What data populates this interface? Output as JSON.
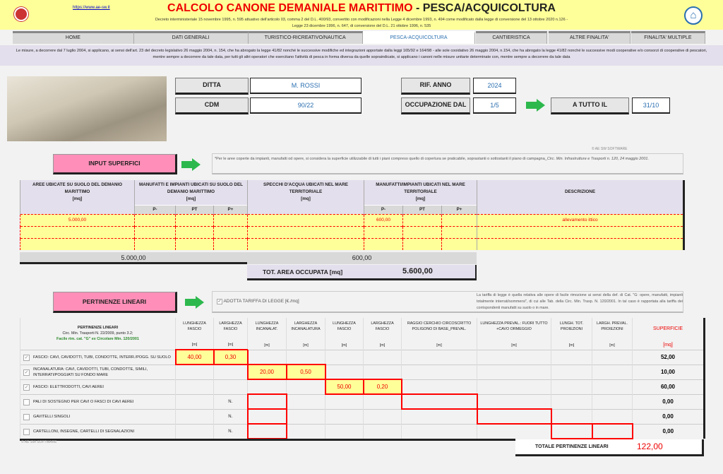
{
  "header": {
    "url": "https://www.ae-sw.it",
    "title_red": "CALCOLO CANONE DEMANIALE MARITTIMO",
    "title_sep": " - ",
    "title_black": "PESCA/ACQUICOLTURA",
    "subtitle1": "Decreto interministeriale 15 novembre 1995, n. 595 attuativo dell'articolo 03, comma 2 del D.L. 400/93, convertito con modificazioni nella Legge 4 dicembre 1993, n. 494 come modificato dalla legge di conversione del 13 ottobre 2020 n.126 -",
    "subtitle2": "Legge 23 dicembre 1996, n. 647, di conversione del D.L. 21 ottobre 1996, n. 535",
    "home_icon": "house-icon"
  },
  "tabs": [
    {
      "label": "HOME"
    },
    {
      "label": "DATI GENERALI"
    },
    {
      "label": "TURISTICO-RICREATIVO/NAUTICA"
    },
    {
      "label": "PESCA-ACQUICOLTURA",
      "active": true
    },
    {
      "label": "CANTIERISTICA"
    },
    {
      "label": "ALTRE FINALITA'"
    },
    {
      "label": "FINALITA' MULTIPLE"
    }
  ],
  "notice": "Le misure, a decorrere dal 7 luglio 2004, si applicano, ai sensi dell'art. 23 del decreto legislativo 26 maggio 2004, n. 154, che ha abrogato la legge 41/82 nonché le successive modifiche ed integrazioni apportate dalla leggi 165/92 e 164/98 - alle sole cooidativo 26 maggio 2004, n.154, che ha abrogato la legge 41/82 nonché le successive modi cooperative e/o consorzi di cooperative di pescatori, mentre sempre a decorrere da tale data, per tutti gli altri operatori che esercitano l'attività di pesca in forma diversa da quelle sopraindicate, si applicano i canoni nelle misure unitarie determinate con, mentre sempre a decorrere da tale data",
  "form": {
    "ditta_label": "DITTA",
    "ditta": "M. ROSSI",
    "cdm_label": "CDM",
    "cdm": "90/22",
    "rif_label": "RIF. ANNO",
    "rif": "2024",
    "occ_label": "OCCUPAZIONE DAL",
    "occ": "1/5",
    "tutto_label": "A TUTTO IL",
    "tutto": "31/10"
  },
  "copyright": "© AE SW SOFTWARE",
  "input": {
    "button": "INPUT SUPERFICI",
    "note_pre": "*Per le aree coperte da impianti, manufatti od opere, si considera la superficie utilizzabile di tutti i piani compreso quello di copertura se praticabile, soprastanti o sottostanti il piano di campagna_",
    "note_ref": "Circ. Min. Infrastrutture e Trasporti n. 120, 24 maggio 2001."
  },
  "superfici": {
    "headers": [
      "AREE UBICATE SU SUOLO DEL DEMANIO MARITTIMO",
      "MANUFATTI E IMPIANTI UBICATI SU SUOLO DEL DEMANIO MARITTIMO",
      "SPECCHI D'ACQUA UBICATI NEL MARE TERRITORIALE",
      "MANUFATTI/IMPIANTI UBICATI NEL MARE TERRITORIALE",
      "DESCRIZIONE"
    ],
    "unit": "[mq]",
    "sub": [
      "P-",
      "PT",
      "P+"
    ],
    "rows": [
      [
        "5.000,00",
        "",
        "",
        "",
        "",
        "600,00",
        "",
        "",
        "allevamento ittico"
      ],
      [
        "",
        "",
        "",
        "",
        "",
        "",
        "",
        "",
        ""
      ],
      [
        "",
        "",
        "",
        "",
        "",
        "",
        "",
        "",
        ""
      ]
    ],
    "total_suolo": "5.000,00",
    "total_mare": "600,00",
    "tot_label": "TOT. AREA OCCUPATA [mq]",
    "tot_value": "5.600,00"
  },
  "pertinenze": {
    "button": "PERTINENZE LINEARI",
    "checkbox_label": "ADOTTA TARIFFA DI LEGGE [€./mq]",
    "checkbox_checked": true,
    "note": "La tariffa di legge è quella relativa alle opere di facile rimozione ai sensi della def. di Cat. \"G: opere, manufatti, impianti totalmente interrati/sommersi\", di cui alle Tab. della Circ. Min. Trasp. N. 120/2001. In tal caso è rapportata alla tariffa dei corrispondenti manufatti su suolo o in mare.",
    "head_title": "PERTINENZE LINEARI",
    "head_ref1": "Circ. Min. Trasporti N. 22/2009, punto 3.2;",
    "head_ref2": "Facile rim. cat. \"G\" ex Circolare Min. 120/2001",
    "columns": [
      "LUNGHEZZA FASCIO",
      "LARGHEZZA FASCIO",
      "LUNGHEZZA INCANALAT.",
      "LARGHEZZA INCANALATURA",
      "LUNGHEZZA FASCIO",
      "LARGHEZZA FASCIO",
      "RAGGIO CERCHIO CIRCOSCRITTO POLIGONO DI BASE_PREVAL.",
      "LUNGHEZZA PREVAL.: FUORI TUTTO +CAVO ORMEGGIO",
      "LUNGH. TOT. PROIEZIONI",
      "LARGH. PREVAL. PROIEZIONI"
    ],
    "col_unit": "[m]",
    "sup_label": "SUPERFICIE",
    "sup_unit": "[mq]",
    "rows": [
      {
        "checked": true,
        "label": "FASCIO: CAVI, CAVIDOTTI, TUBI, CONDOTTE, INTERR./POGG. SU SUOLO",
        "unit": "",
        "values": [
          "40,00",
          "0,30",
          "",
          "",
          "",
          "",
          "",
          "",
          "",
          ""
        ],
        "sup": "52,00"
      },
      {
        "checked": true,
        "label": "INCANALATURA: CAVI, CAVIDOTTI, TUBI, CONDOTTE, SIMILI, INTERRATI/POGGIATI SU FONDO MARE",
        "unit": "",
        "values": [
          "",
          "",
          "20,00",
          "0,50",
          "",
          "",
          "",
          "",
          "",
          ""
        ],
        "sup": "10,00"
      },
      {
        "checked": true,
        "label": "FASCIO: ELETTRODOTTI, CAVI AEREI",
        "unit": "",
        "values": [
          "",
          "",
          "",
          "",
          "50,00",
          "0,20",
          "",
          "",
          "",
          ""
        ],
        "sup": "60,00"
      },
      {
        "checked": false,
        "label": "PALI DI SOSTEGNO PER CAVI O FASCI DI CAVI AEREI",
        "unit": "N.",
        "values": [
          "",
          "",
          "",
          "",
          "",
          "",
          "",
          "",
          "",
          ""
        ],
        "sup": "0,00"
      },
      {
        "checked": false,
        "label": "GAVITELLI SINGOLI",
        "unit": "N.",
        "values": [
          "",
          "",
          "",
          "",
          "",
          "",
          "",
          "",
          "",
          ""
        ],
        "sup": "0,00"
      },
      {
        "checked": false,
        "label": "CARTELLONI, INSEGNE, CARTELLI DI SEGNALAZIONI",
        "unit": "N.",
        "values": [
          "",
          "",
          "",
          "",
          "",
          "",
          "",
          "",
          "",
          ""
        ],
        "sup": "0,00"
      }
    ],
    "total_label": "TOTALE PERTINENZE LINEARI",
    "total": "122,00"
  }
}
